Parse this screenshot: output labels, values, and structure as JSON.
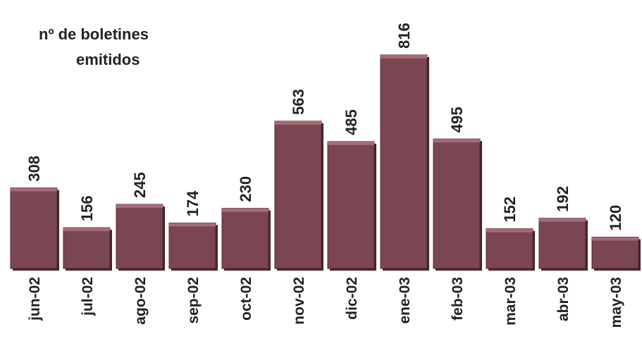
{
  "chart_data": {
    "type": "bar",
    "title_lines": [
      "nº de boletines",
      "emitidos"
    ],
    "categories": [
      "jun-02",
      "jul-02",
      "ago-02",
      "sep-02",
      "oct-02",
      "nov-02",
      "dic-02",
      "ene-03",
      "feb-03",
      "mar-03",
      "abr-03",
      "may-03"
    ],
    "values": [
      308,
      156,
      245,
      174,
      230,
      563,
      485,
      816,
      495,
      152,
      192,
      120
    ],
    "data_labels": [
      "308",
      "156",
      "245",
      "174",
      "230",
      "563",
      "485",
      "816",
      "495",
      "152",
      "192",
      "120"
    ],
    "ylim": [
      0,
      816
    ],
    "grid": false,
    "colors": {
      "bar_fill": "#7a4652",
      "bar_top": "#a56a78",
      "bar_shadow": "#4a242d",
      "text": "#222222"
    }
  }
}
